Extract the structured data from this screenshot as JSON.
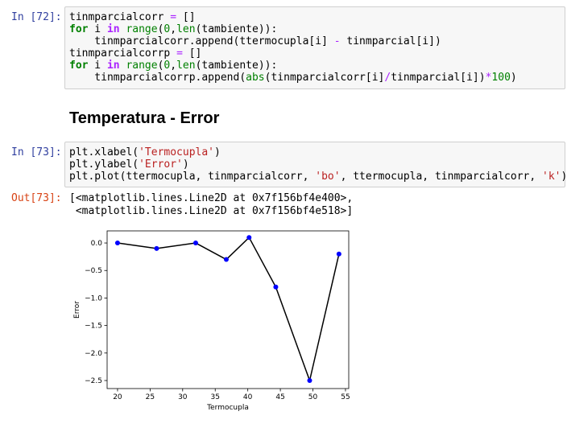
{
  "cells": [
    {
      "prompt": "In [72]:",
      "lines": [
        [
          {
            "text": "tinmparcialcorr "
          },
          {
            "text": "=",
            "color": "#aa22ff"
          },
          {
            "text": " []"
          }
        ],
        [
          {
            "text": "for",
            "color": "#008000",
            "bold": true
          },
          {
            "text": " i "
          },
          {
            "text": "in",
            "color": "#aa22ff",
            "bold": true
          },
          {
            "text": " "
          },
          {
            "text": "range",
            "color": "#008000"
          },
          {
            "text": "("
          },
          {
            "text": "0",
            "color": "#008000"
          },
          {
            "text": ","
          },
          {
            "text": "len",
            "color": "#008000"
          },
          {
            "text": "(tambiente)):"
          }
        ],
        [
          {
            "text": "    tinmparcialcorr.append(ttermocupla[i] "
          },
          {
            "text": "-",
            "color": "#aa22ff"
          },
          {
            "text": " tinmparcial[i])"
          }
        ],
        [
          {
            "text": "tinmparcialcorrp "
          },
          {
            "text": "=",
            "color": "#aa22ff"
          },
          {
            "text": " []"
          }
        ],
        [
          {
            "text": "for",
            "color": "#008000",
            "bold": true
          },
          {
            "text": " i "
          },
          {
            "text": "in",
            "color": "#aa22ff",
            "bold": true
          },
          {
            "text": " "
          },
          {
            "text": "range",
            "color": "#008000"
          },
          {
            "text": "("
          },
          {
            "text": "0",
            "color": "#008000"
          },
          {
            "text": ","
          },
          {
            "text": "len",
            "color": "#008000"
          },
          {
            "text": "(tambiente)):"
          }
        ],
        [
          {
            "text": "    tinmparcialcorrp.append("
          },
          {
            "text": "abs",
            "color": "#008000"
          },
          {
            "text": "(tinmparcialcorr[i]"
          },
          {
            "text": "/",
            "color": "#aa22ff"
          },
          {
            "text": "tinmparcial[i])"
          },
          {
            "text": "*",
            "color": "#aa22ff"
          },
          {
            "text": "100",
            "color": "#008000"
          },
          {
            "text": ")"
          }
        ]
      ]
    },
    {
      "prompt": "In [73]:",
      "lines": [
        [
          {
            "text": "plt.xlabel("
          },
          {
            "text": "'Termocupla'",
            "color": "#ba2121"
          },
          {
            "text": ")"
          }
        ],
        [
          {
            "text": "plt.ylabel("
          },
          {
            "text": "'Error'",
            "color": "#ba2121"
          },
          {
            "text": ")"
          }
        ],
        [
          {
            "text": "plt.plot(ttermocupla, tinmparcialcorr, "
          },
          {
            "text": "'bo'",
            "color": "#ba2121"
          },
          {
            "text": ", ttermocupla, tinmparcialcorr, "
          },
          {
            "text": "'k'",
            "color": "#ba2121"
          },
          {
            "text": ")"
          }
        ]
      ]
    }
  ],
  "heading": "Temperatura - Error",
  "output": {
    "prompt": "Out[73]:",
    "lines": [
      "[<matplotlib.lines.Line2D at 0x7f156bf4e400>,",
      " <matplotlib.lines.Line2D at 0x7f156bf4e518>]"
    ]
  },
  "chart_data": {
    "type": "line",
    "x_label": "Termocupla",
    "y_label": "Error",
    "x": [
      20,
      26,
      32,
      36.7,
      40.2,
      44.3,
      49.5,
      54
    ],
    "values": [
      0.0,
      -0.1,
      0.0,
      -0.3,
      0.1,
      -0.8,
      -2.5,
      -0.2
    ],
    "color": "#000000",
    "marker_color": "#0000ff",
    "xlim": [
      18.4,
      55.5
    ],
    "ylim": [
      -2.646,
      0.22
    ],
    "xticks": [
      20,
      25,
      30,
      35,
      40,
      45,
      50,
      55
    ],
    "yticks": [
      {
        "value": 0,
        "label": "0.0"
      },
      {
        "value": -0.5,
        "label": "−0.5"
      },
      {
        "value": -1,
        "label": "−1.0"
      },
      {
        "value": -1.5,
        "label": "−1.5"
      },
      {
        "value": -2,
        "label": "−2.0"
      },
      {
        "value": -2.5,
        "label": "−2.5"
      }
    ]
  }
}
